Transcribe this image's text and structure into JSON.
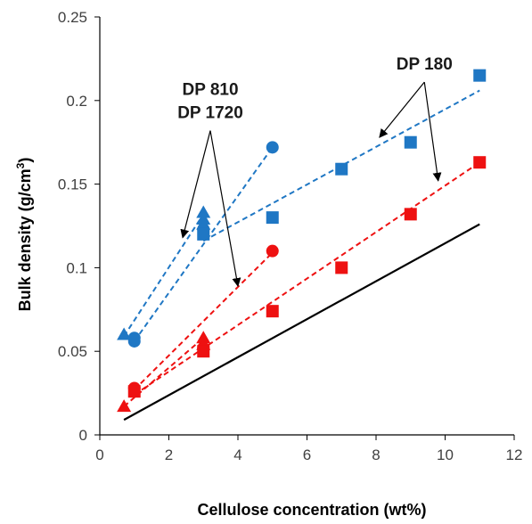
{
  "chart_data": {
    "type": "scatter",
    "xlabel": "Cellulose concentration (wt%)",
    "ylabel_main": "Bulk density (g/cm",
    "ylabel_sup": "3",
    "ylabel_end": ")",
    "xlim": [
      0,
      12
    ],
    "ylim": [
      0,
      0.25
    ],
    "x_ticks": [
      0,
      2,
      4,
      6,
      8,
      10,
      12
    ],
    "y_ticks": [
      0,
      0.05,
      0.1,
      0.15,
      0.2,
      0.25
    ],
    "y_tick_labels": [
      "0",
      "0.05",
      "0.1",
      "0.15",
      "0.2",
      "0.25"
    ],
    "grid": false,
    "legend": "none",
    "colors": {
      "blue": "#1f77c4",
      "red": "#ee1111",
      "black": "#000000"
    },
    "series": [
      {
        "color": "blue",
        "marker": "triangle",
        "points": [
          [
            0.7,
            0.06
          ],
          [
            3.0,
            0.133
          ],
          [
            3.0,
            0.129
          ],
          [
            3.0,
            0.126
          ]
        ],
        "fit": [
          [
            0.7,
            0.059
          ],
          [
            3.0,
            0.132
          ]
        ]
      },
      {
        "color": "blue",
        "marker": "circle",
        "points": [
          [
            1.0,
            0.056
          ],
          [
            1.0,
            0.058
          ],
          [
            3.0,
            0.123
          ],
          [
            5.0,
            0.172
          ]
        ],
        "fit": [
          [
            1.0,
            0.056
          ],
          [
            5.0,
            0.172
          ]
        ]
      },
      {
        "color": "blue",
        "marker": "square",
        "points": [
          [
            3.0,
            0.12
          ],
          [
            5.0,
            0.13
          ],
          [
            7.0,
            0.159
          ],
          [
            9.0,
            0.175
          ],
          [
            11.0,
            0.215
          ]
        ],
        "fit": [
          [
            3.0,
            0.116
          ],
          [
            11.0,
            0.206
          ]
        ]
      },
      {
        "color": "red",
        "marker": "triangle",
        "points": [
          [
            0.7,
            0.017
          ],
          [
            3.0,
            0.058
          ],
          [
            3.0,
            0.054
          ]
        ],
        "fit": [
          [
            0.7,
            0.017
          ],
          [
            3.0,
            0.058
          ]
        ]
      },
      {
        "color": "red",
        "marker": "circle",
        "points": [
          [
            1.0,
            0.028
          ],
          [
            3.0,
            0.052
          ],
          [
            5.0,
            0.11
          ]
        ],
        "fit": [
          [
            1.0,
            0.027
          ],
          [
            5.0,
            0.109
          ]
        ]
      },
      {
        "color": "red",
        "marker": "square",
        "points": [
          [
            1.0,
            0.026
          ],
          [
            3.0,
            0.05
          ],
          [
            5.0,
            0.074
          ],
          [
            7.0,
            0.1
          ],
          [
            9.0,
            0.132
          ],
          [
            11.0,
            0.163
          ]
        ],
        "fit": [
          [
            1.0,
            0.024
          ],
          [
            11.0,
            0.163
          ]
        ]
      }
    ],
    "reference_line": {
      "points": [
        [
          0.7,
          0.009
        ],
        [
          11.0,
          0.126
        ]
      ]
    },
    "annotations": [
      {
        "lines": [
          "DP 810",
          "DP 1720"
        ],
        "from": [
          3.2,
          0.182
        ],
        "to": [
          [
            2.4,
            0.118
          ],
          [
            4.0,
            0.089
          ]
        ]
      },
      {
        "lines": [
          "DP 180"
        ],
        "from": [
          9.4,
          0.211
        ],
        "to": [
          [
            8.1,
            0.178
          ],
          [
            9.8,
            0.152
          ]
        ]
      }
    ]
  }
}
